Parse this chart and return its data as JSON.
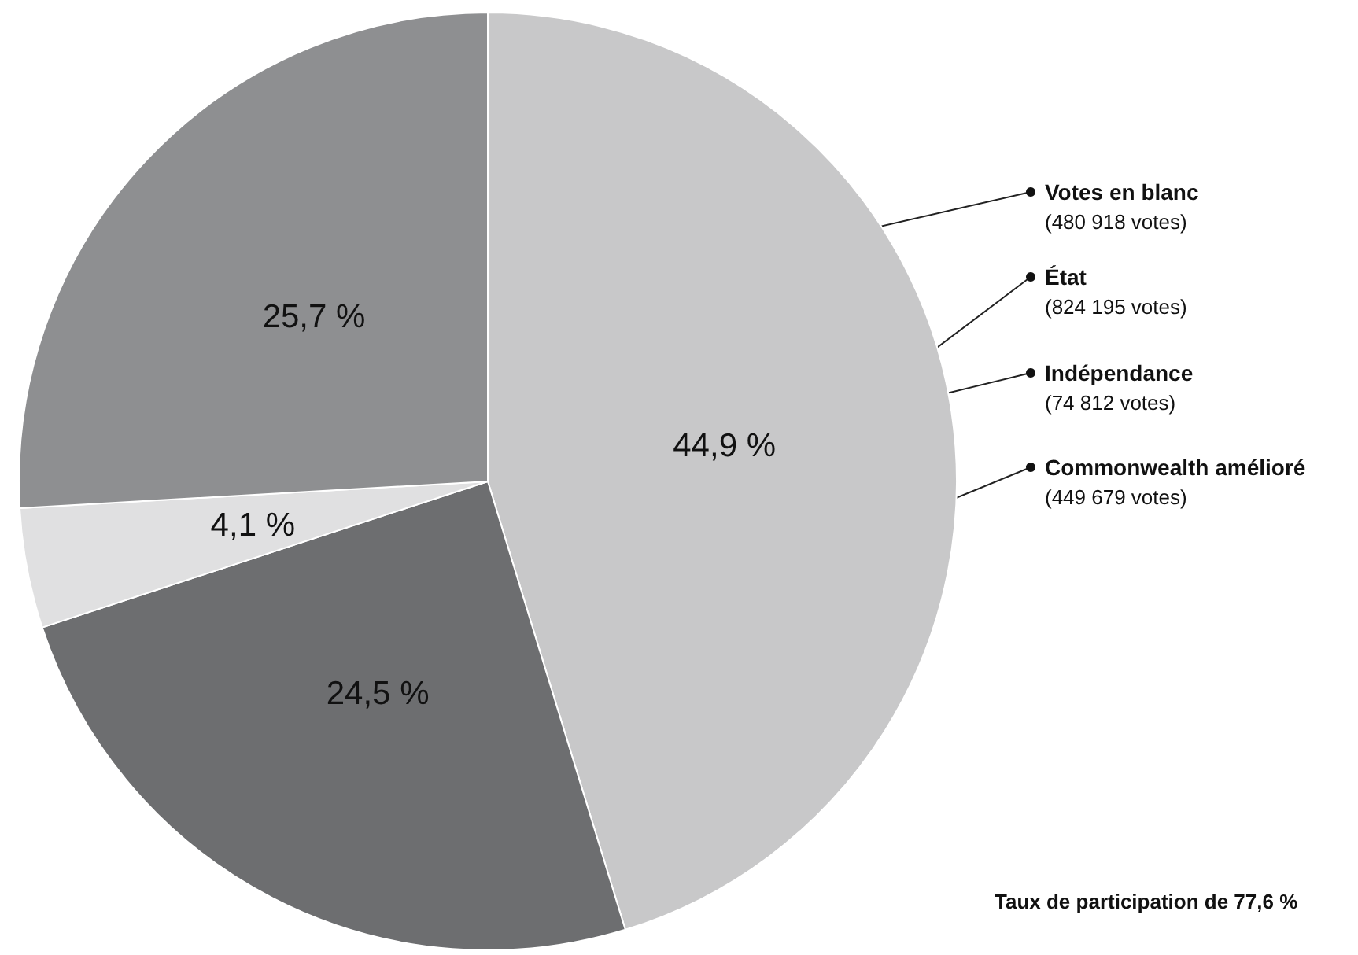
{
  "chart_data": {
    "type": "pie",
    "categories": [
      "État",
      "Commonwealth amélioré",
      "Indépendance",
      "Votes en blanc"
    ],
    "values": [
      44.9,
      24.5,
      4.1,
      25.7
    ],
    "colors": [
      "#c8c8c9",
      "#6d6e70",
      "#e0e0e1",
      "#8e8f91"
    ],
    "value_labels": [
      "44,9 %",
      "24,5 %",
      "4,1 %",
      "25,7 %"
    ],
    "annotations": [
      "(824 195 votes)",
      "(449 679 votes)",
      "(74 812 votes)",
      "(480 918 votes)",
      "Taux de participation de 77,6 %"
    ]
  }
}
